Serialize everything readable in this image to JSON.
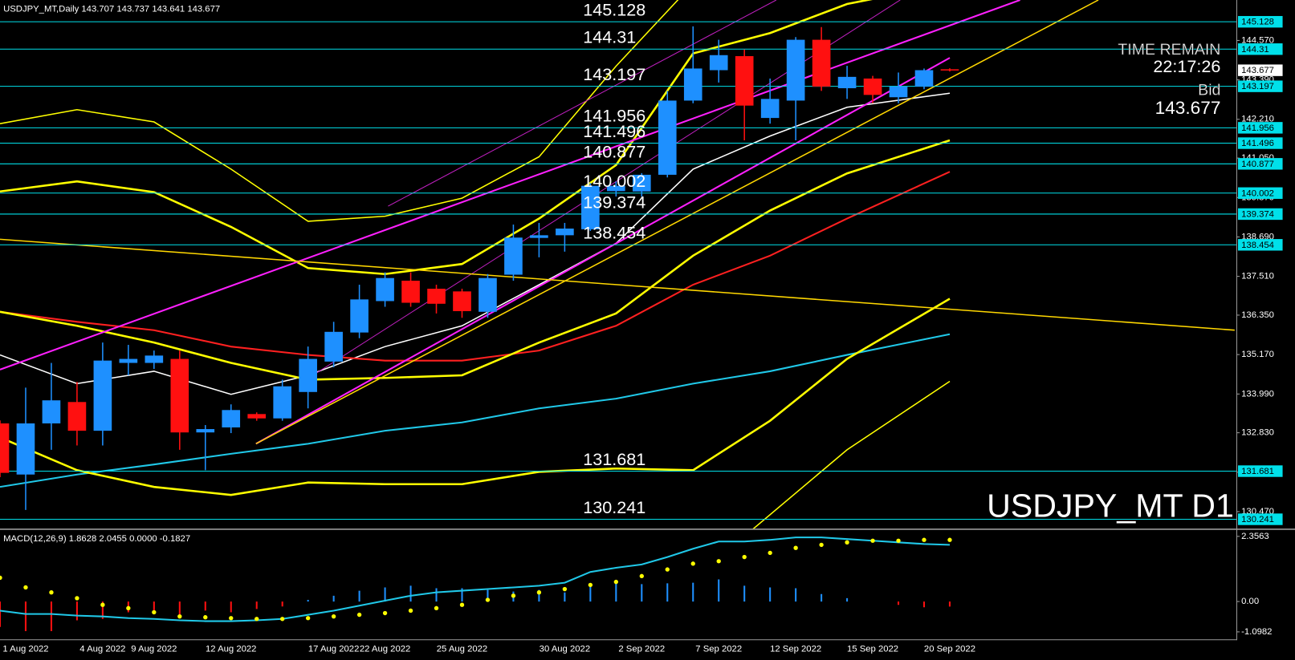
{
  "chart_data": {
    "type": "candlestick",
    "header": "USDJPY_MT,Daily 143.707 143.737 143.641 143.677",
    "watermark": "USDJPY_MT D1",
    "timer_label": "TIME REMAIN",
    "timer": "22:17:26",
    "bid_label": "Bid",
    "bid": 143.677,
    "categories": [
      null,
      "1 Aug 2022",
      null,
      null,
      "4 Aug 2022",
      null,
      "9 Aug 2022",
      null,
      null,
      "12 Aug 2022",
      null,
      null,
      null,
      "17 Aug 2022",
      null,
      "22 Aug 2022",
      null,
      null,
      "25 Aug 2022",
      null,
      null,
      null,
      "30 Aug 2022",
      null,
      null,
      "2 Sep 2022",
      null,
      null,
      "7 Sep 2022",
      null,
      null,
      "12 Sep 2022",
      null,
      null,
      "15 Sep 2022",
      null,
      null,
      "20 Sep 2022"
    ],
    "open": [
      133.11,
      131.58,
      133.11,
      133.75,
      132.89,
      134.92,
      134.92,
      135.04,
      132.84,
      132.99,
      133.39,
      133.26,
      134.05,
      134.96,
      135.83,
      136.77,
      137.38,
      137.14,
      137.06,
      136.45,
      137.56,
      138.66,
      138.74,
      138.92,
      140.06,
      140.05,
      140.55,
      142.77,
      143.68,
      144.1,
      142.25,
      142.77,
      144.59,
      143.14,
      143.43,
      142.87,
      143.19,
      143.707
    ],
    "high": [
      133.2,
      134.18,
      134.92,
      134.35,
      135.53,
      135.46,
      135.29,
      135.29,
      133.06,
      133.68,
      133.44,
      134.42,
      135.41,
      136.15,
      137.26,
      137.63,
      137.63,
      137.26,
      137.14,
      137.58,
      139.06,
      139.11,
      139.11,
      140.3,
      140.35,
      140.6,
      143.06,
      144.99,
      144.59,
      144.3,
      143.43,
      144.67,
      144.97,
      143.81,
      143.51,
      143.61,
      143.73,
      143.737
    ],
    "low": [
      131.5,
      130.52,
      132.32,
      132.45,
      132.45,
      134.55,
      134.74,
      132.32,
      131.71,
      132.82,
      133.19,
      133.19,
      133.56,
      134.79,
      135.66,
      136.6,
      136.6,
      136.4,
      136.27,
      136.27,
      137.38,
      138.08,
      138.25,
      138.87,
      139.9,
      139.9,
      140.47,
      142.69,
      143.31,
      141.58,
      142.08,
      141.58,
      143.06,
      142.82,
      142.69,
      142.69,
      143.11,
      143.641
    ],
    "close": [
      131.63,
      133.11,
      133.8,
      132.89,
      134.99,
      135.04,
      135.14,
      132.84,
      132.94,
      133.51,
      133.26,
      134.22,
      135.04,
      135.85,
      136.82,
      137.46,
      136.72,
      136.69,
      136.47,
      137.46,
      138.67,
      138.74,
      138.94,
      140.22,
      140.22,
      140.55,
      142.77,
      143.73,
      144.13,
      142.62,
      142.82,
      144.59,
      143.19,
      143.48,
      142.94,
      143.19,
      143.68,
      143.677
    ],
    "up_color": "#1e90ff",
    "down_color": "#ff1010",
    "ylim": [
      129.98,
      145.78
    ],
    "yticks": [
      {
        "value": 144.57,
        "label": "144.570"
      },
      {
        "value": 143.39,
        "label": "143.390"
      },
      {
        "value": 142.21,
        "label": "142.210"
      },
      {
        "value": 141.05,
        "label": "141.050"
      },
      {
        "value": 139.87,
        "label": "139.870"
      },
      {
        "value": 138.69,
        "label": "138.690"
      },
      {
        "value": 137.51,
        "label": "137.510"
      },
      {
        "value": 136.35,
        "label": "136.350"
      },
      {
        "value": 135.17,
        "label": "135.170"
      },
      {
        "value": 133.99,
        "label": "133.990"
      },
      {
        "value": 132.83,
        "label": "132.830"
      },
      {
        "value": 131.65,
        "label": "131.650"
      },
      {
        "value": 130.47,
        "label": "130.470"
      }
    ],
    "levels": {
      "color": "#00e0ea",
      "values": [
        145.128,
        144.31,
        143.197,
        141.956,
        141.496,
        140.877,
        140.002,
        139.374,
        138.454,
        131.681,
        130.241
      ]
    },
    "current_price": 143.677,
    "lines": [
      {
        "color": "#ffffff",
        "width": 1.5,
        "x": [
          0,
          3,
          6,
          9,
          12,
          15,
          18,
          21,
          24,
          27,
          30,
          33,
          37
        ],
        "values": [
          135.16,
          134.3,
          134.67,
          133.98,
          134.55,
          135.41,
          136.03,
          137.26,
          138.5,
          140.72,
          141.71,
          142.57,
          142.99
        ]
      },
      {
        "color": "#ff2020",
        "width": 2,
        "x": [
          0,
          3,
          6,
          9,
          12,
          15,
          18,
          21,
          24,
          27,
          30,
          33,
          37
        ],
        "values": [
          136.45,
          136.15,
          135.9,
          135.41,
          135.16,
          134.99,
          134.99,
          135.29,
          136.03,
          137.26,
          138.13,
          139.24,
          140.64
        ]
      },
      {
        "color": "#20c8e8",
        "width": 2,
        "x": [
          0,
          3,
          6,
          9,
          12,
          15,
          18,
          21,
          24,
          27,
          30,
          33,
          37
        ],
        "values": [
          131.21,
          131.58,
          131.88,
          132.2,
          132.5,
          132.89,
          133.14,
          133.56,
          133.85,
          134.3,
          134.67,
          135.16,
          135.78
        ]
      },
      {
        "color": "#ffff00",
        "width": 2.5,
        "x": [
          0,
          3,
          6,
          9,
          12,
          15,
          18,
          21,
          24,
          27,
          30,
          33,
          37
        ],
        "values": [
          140.05,
          140.35,
          140.03,
          138.99,
          137.76,
          137.58,
          137.88,
          139.24,
          140.84,
          144.18,
          144.79,
          145.66,
          146.27
        ]
      },
      {
        "color": "#ffff00",
        "width": 2.5,
        "x": [
          0,
          3,
          6,
          9,
          12,
          15,
          18,
          21,
          24,
          27,
          30,
          33,
          37
        ],
        "values": [
          136.45,
          136.03,
          135.53,
          134.92,
          134.42,
          134.47,
          134.55,
          135.53,
          136.4,
          138.13,
          139.48,
          140.59,
          141.58
        ]
      },
      {
        "color": "#ffff00",
        "width": 2.5,
        "x": [
          0,
          3,
          6,
          9,
          12,
          15,
          18,
          21,
          24,
          27,
          30,
          33,
          37
        ],
        "values": [
          132.69,
          131.71,
          131.21,
          130.97,
          131.34,
          131.29,
          131.29,
          131.66,
          131.76,
          131.71,
          133.19,
          135.04,
          136.84
        ]
      },
      {
        "color": "#ffff00",
        "width": 1.5,
        "x": [
          0,
          3,
          6,
          9,
          12,
          15,
          18,
          21,
          24,
          27
        ],
        "values": [
          142.08,
          142.5,
          142.13,
          140.72,
          139.16,
          139.31,
          139.85,
          141.09,
          143.8,
          146.27
        ]
      },
      {
        "color": "#ffff00",
        "width": 1.5,
        "x": [
          29,
          33,
          37
        ],
        "values": [
          129.73,
          132.32,
          134.37
        ]
      }
    ],
    "trendlines": [
      {
        "color": "#ff20ff",
        "width": 2,
        "x": [
          0,
          39.74
        ],
        "values": [
          134.72,
          145.78
        ]
      },
      {
        "color": "#ff20ff",
        "width": 2,
        "x": [
          9.97,
          37
        ],
        "values": [
          132.5,
          144.05
        ]
      },
      {
        "color": "#c020c0",
        "width": 1,
        "x": [
          12.23,
          35.07
        ],
        "values": [
          134.57,
          145.78
        ]
      },
      {
        "color": "#c020c0",
        "width": 1,
        "x": [
          15.12,
          30.24
        ],
        "values": [
          139.61,
          145.78
        ]
      },
      {
        "color": "#ffd700",
        "width": 1.5,
        "x": [
          0,
          48.1
        ],
        "values": [
          138.62,
          135.9
        ]
      },
      {
        "color": "#ffd700",
        "width": 1.5,
        "x": [
          9.97,
          42.79
        ],
        "values": [
          132.5,
          145.78
        ]
      }
    ],
    "macd": {
      "title": "MACD(12,26,9) 1.8628 2.0455 0.0000 -0.1827",
      "ylim": [
        -1.37,
        2.57
      ],
      "yticks": [
        2.3563,
        {
          "value": 0,
          "label": "0.00"
        },
        -1.0982
      ],
      "histogram": [
        -0.92,
        -1.07,
        -1.07,
        -0.68,
        -0.63,
        -0.39,
        -0.33,
        -0.48,
        -0.33,
        -0.39,
        -0.27,
        -0.18,
        0.06,
        0.21,
        0.39,
        0.51,
        0.57,
        0.48,
        0.48,
        0.42,
        0.36,
        0.42,
        0.33,
        0.63,
        0.71,
        0.63,
        0.66,
        0.68,
        0.8,
        0.57,
        0.51,
        0.48,
        0.27,
        0.12,
        0,
        -0.12,
        -0.21,
        -0.1827
      ],
      "signal": [
        0.86,
        0.51,
        0.33,
        0.12,
        -0.12,
        -0.24,
        -0.39,
        -0.54,
        -0.57,
        -0.6,
        -0.63,
        -0.63,
        -0.6,
        -0.54,
        -0.48,
        -0.42,
        -0.33,
        -0.24,
        -0.12,
        0.06,
        0.21,
        0.33,
        0.45,
        0.6,
        0.71,
        0.92,
        1.16,
        1.37,
        1.46,
        1.61,
        1.76,
        1.94,
        2.05,
        2.14,
        2.2,
        2.2,
        2.23,
        2.23
      ],
      "signal_color": "#ffff00",
      "main": [
        -0.33,
        -0.45,
        -0.45,
        -0.51,
        -0.54,
        -0.6,
        -0.63,
        -0.68,
        -0.71,
        -0.71,
        -0.68,
        -0.63,
        -0.48,
        -0.33,
        -0.15,
        0.03,
        0.21,
        0.33,
        0.39,
        0.45,
        0.51,
        0.57,
        0.68,
        1.07,
        1.22,
        1.34,
        1.61,
        1.91,
        2.17,
        2.17,
        2.23,
        2.32,
        2.32,
        2.26,
        2.2,
        2.14,
        2.08,
        2.05
      ],
      "main_color": "#20c8e8"
    }
  }
}
